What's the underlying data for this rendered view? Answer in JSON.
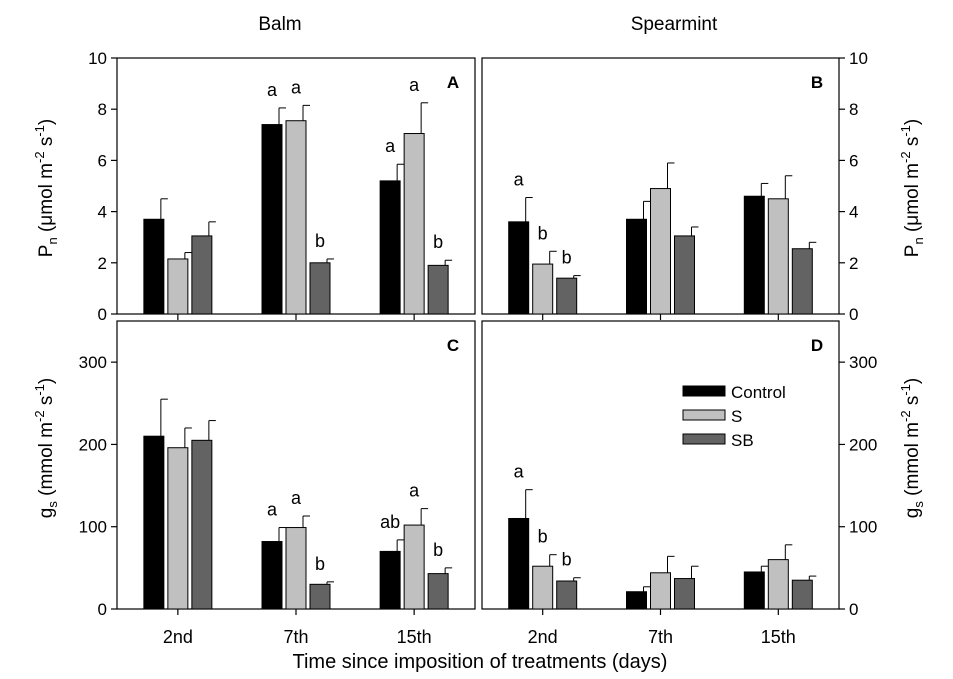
{
  "colors": {
    "Control": "#000000",
    "S": "#c0c0c0",
    "SB": "#636363"
  },
  "column_titles": {
    "left": "Balm",
    "right": "Spearmint"
  },
  "x_axis_title": "Time since imposition of treatments (days)",
  "y_axis_pn": {
    "main": "P",
    "sub": "n",
    "unit_open": " (",
    "mu": "μ",
    "unit_mid": "mol m",
    "exp1": "-2",
    "unit_s": " s",
    "exp2": "-1",
    "unit_close": ")"
  },
  "y_axis_gs": {
    "main": "g",
    "sub": "s",
    "unit_open": " (mmol m",
    "exp1": "-2",
    "unit_s": " s",
    "exp2": "-1",
    "unit_close": ")"
  },
  "legend": {
    "position": "upper-right of panel D",
    "entries": [
      "Control",
      "S",
      "SB"
    ]
  },
  "chart_data": [
    {
      "panel": "A",
      "type": "bar",
      "title": "Balm",
      "xlabel": "",
      "ylabel": "Pn (μmol m-2 s-1)",
      "ylim": [
        0,
        10
      ],
      "yticks": [
        0,
        2,
        4,
        6,
        8,
        10
      ],
      "categories": [
        "2nd",
        "7th",
        "15th"
      ],
      "series": [
        {
          "name": "Control",
          "values": [
            3.7,
            7.4,
            5.2
          ],
          "errors": [
            0.8,
            0.65,
            0.65
          ],
          "letters": [
            "",
            "a",
            "a"
          ]
        },
        {
          "name": "S",
          "values": [
            2.15,
            7.55,
            7.05
          ],
          "errors": [
            0.25,
            0.6,
            1.2
          ],
          "letters": [
            "",
            "a",
            "a"
          ]
        },
        {
          "name": "SB",
          "values": [
            3.05,
            2.0,
            1.9
          ],
          "errors": [
            0.55,
            0.15,
            0.2
          ],
          "letters": [
            "",
            "b",
            "b"
          ]
        }
      ]
    },
    {
      "panel": "B",
      "type": "bar",
      "title": "Spearmint",
      "xlabel": "",
      "ylabel": "Pn (μmol m-2 s-1)",
      "ylim": [
        0,
        10
      ],
      "yticks": [
        0,
        2,
        4,
        6,
        8,
        10
      ],
      "categories": [
        "2nd",
        "7th",
        "15th"
      ],
      "series": [
        {
          "name": "Control",
          "values": [
            3.6,
            3.7,
            4.6
          ],
          "errors": [
            0.95,
            0.7,
            0.5
          ],
          "letters": [
            "a",
            "",
            ""
          ]
        },
        {
          "name": "S",
          "values": [
            1.95,
            4.9,
            4.5
          ],
          "errors": [
            0.5,
            1.0,
            0.9
          ],
          "letters": [
            "b",
            "",
            ""
          ]
        },
        {
          "name": "SB",
          "values": [
            1.4,
            3.05,
            2.55
          ],
          "errors": [
            0.1,
            0.35,
            0.25
          ],
          "letters": [
            "b",
            "",
            ""
          ]
        }
      ]
    },
    {
      "panel": "C",
      "type": "bar",
      "title": "",
      "xlabel": "",
      "ylabel": "gs (mmol m-2 s-1)",
      "ylim": [
        0,
        350
      ],
      "yticks": [
        0,
        100,
        200,
        300
      ],
      "categories": [
        "2nd",
        "7th",
        "15th"
      ],
      "series": [
        {
          "name": "Control",
          "values": [
            210,
            82,
            70
          ],
          "errors": [
            45,
            17,
            14
          ],
          "letters": [
            "",
            "a",
            "ab"
          ]
        },
        {
          "name": "S",
          "values": [
            196,
            99,
            102
          ],
          "errors": [
            24,
            14,
            20
          ],
          "letters": [
            "",
            "a",
            "a"
          ]
        },
        {
          "name": "SB",
          "values": [
            205,
            30,
            43
          ],
          "errors": [
            24,
            3,
            7
          ],
          "letters": [
            "",
            "b",
            "b"
          ]
        }
      ]
    },
    {
      "panel": "D",
      "type": "bar",
      "title": "",
      "xlabel": "",
      "ylabel": "gs (mmol m-2 s-1)",
      "ylim": [
        0,
        350
      ],
      "yticks": [
        0,
        100,
        200,
        300
      ],
      "categories": [
        "2nd",
        "7th",
        "15th"
      ],
      "series": [
        {
          "name": "Control",
          "values": [
            110,
            21,
            45
          ],
          "errors": [
            35,
            6,
            7
          ],
          "letters": [
            "a",
            "",
            ""
          ]
        },
        {
          "name": "S",
          "values": [
            52,
            44,
            60
          ],
          "errors": [
            14,
            20,
            18
          ],
          "letters": [
            "b",
            "",
            ""
          ]
        },
        {
          "name": "SB",
          "values": [
            34,
            37,
            35
          ],
          "errors": [
            4,
            15,
            5
          ],
          "letters": [
            "b",
            "",
            ""
          ]
        }
      ]
    }
  ]
}
